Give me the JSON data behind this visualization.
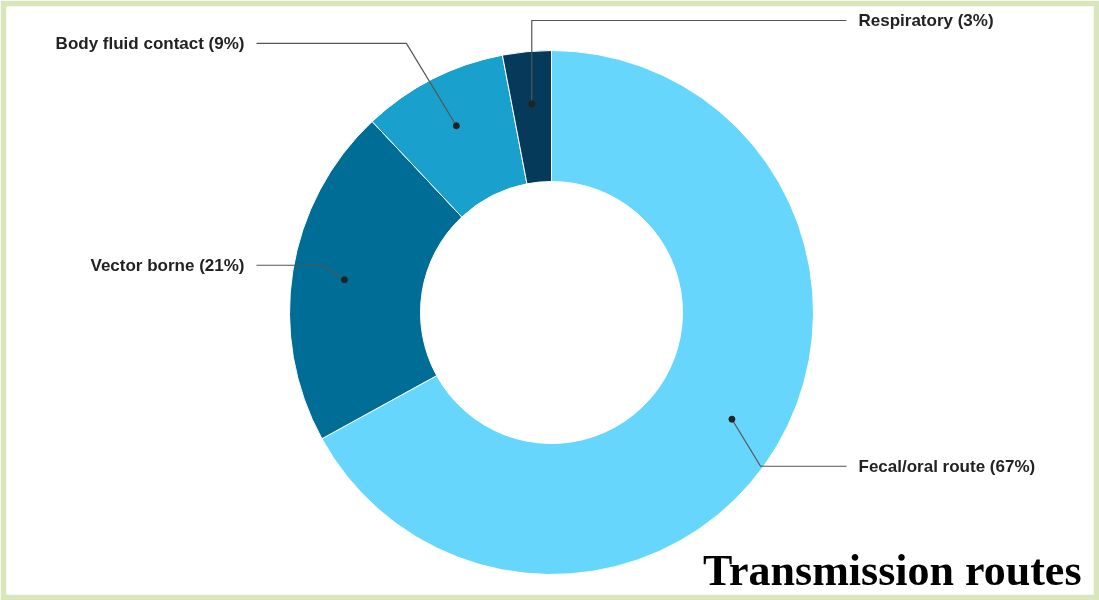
{
  "chart_data": {
    "type": "donut",
    "title": "Transmission routes",
    "categories": [
      "Fecal/oral route",
      "Vector borne",
      "Body fluid contact",
      "Respiratory"
    ],
    "values": [
      67,
      21,
      9,
      3
    ],
    "colors": [
      "#66d6fc",
      "#006d96",
      "#1aa0cc",
      "#063a5a"
    ],
    "value_labels": [
      "(67%)",
      "(21%)",
      "(9%)",
      "(3%)"
    ]
  }
}
